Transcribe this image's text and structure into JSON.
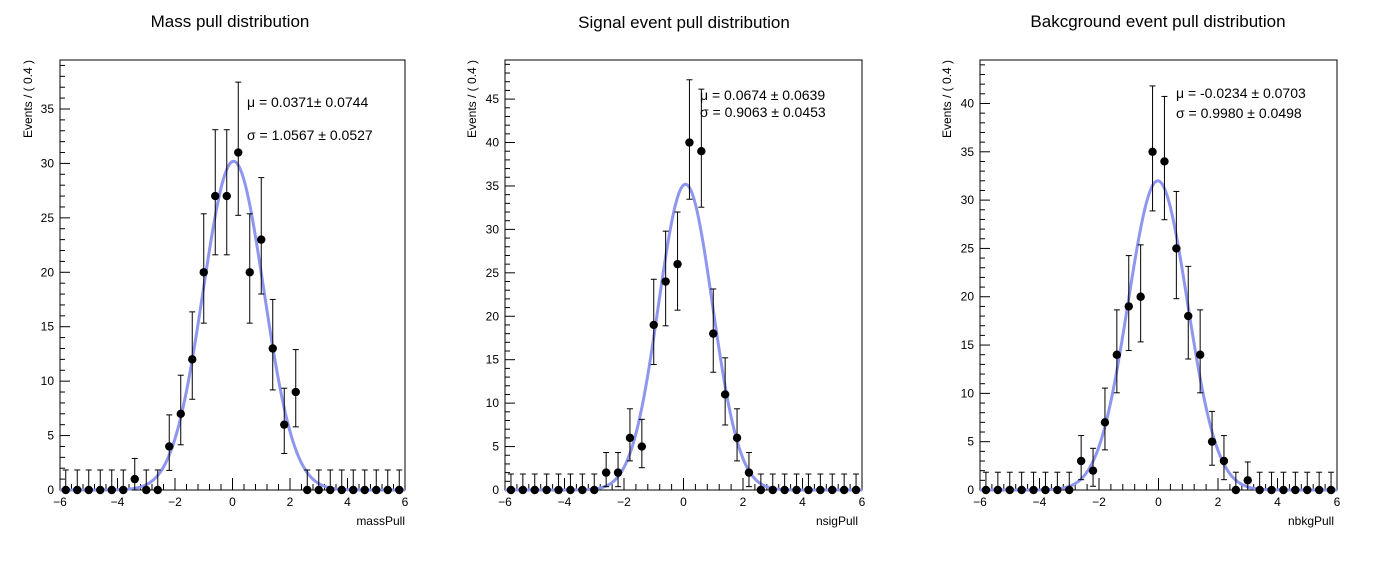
{
  "chart_data": [
    {
      "type": "scatter",
      "title": "Mass pull distribution",
      "xlabel": "massPull",
      "ylabel": "Events / ( 0.4 )",
      "xlim": [
        -6,
        6
      ],
      "ylim": [
        0,
        39.5
      ],
      "xticks": [
        -6,
        -4,
        -2,
        0,
        2,
        4,
        6
      ],
      "yticks": [
        0,
        5,
        10,
        15,
        20,
        25,
        30,
        35
      ],
      "bin_width": 0.4,
      "x": [
        -5.8,
        -5.4,
        -5.0,
        -4.6,
        -4.2,
        -3.8,
        -3.4,
        -3.0,
        -2.6,
        -2.2,
        -1.8,
        -1.4,
        -1.0,
        -0.6,
        -0.2,
        0.2,
        0.6,
        1.0,
        1.4,
        1.8,
        2.2,
        2.6,
        3.0,
        3.4,
        3.8,
        4.2,
        4.6,
        5.0,
        5.4,
        5.8
      ],
      "values": [
        0,
        0,
        0,
        0,
        0,
        0,
        1,
        0,
        0,
        4,
        7,
        12,
        20,
        27,
        27,
        31,
        20,
        23,
        13,
        6,
        9,
        0,
        0,
        0,
        0,
        0,
        0,
        0,
        0,
        0
      ],
      "fit": {
        "type": "gaussian",
        "mean": 0.0371,
        "sigma": 1.0567,
        "peak": 30.2
      },
      "annotations": [
        "μ = 0.0371± 0.0744",
        "σ = 1.0567 ± 0.0527"
      ],
      "legend": "none",
      "grid": false
    },
    {
      "type": "scatter",
      "title": "Signal event pull distribution",
      "xlabel": "nsigPull",
      "ylabel": "Events / ( 0.4 )",
      "xlim": [
        -6,
        6
      ],
      "ylim": [
        0,
        49.5
      ],
      "xticks": [
        -6,
        -4,
        -2,
        0,
        2,
        4,
        6
      ],
      "yticks": [
        0,
        5,
        10,
        15,
        20,
        25,
        30,
        35,
        40,
        45
      ],
      "bin_width": 0.4,
      "x": [
        -5.8,
        -5.4,
        -5.0,
        -4.6,
        -4.2,
        -3.8,
        -3.4,
        -3.0,
        -2.6,
        -2.2,
        -1.8,
        -1.4,
        -1.0,
        -0.6,
        -0.2,
        0.2,
        0.6,
        1.0,
        1.4,
        1.8,
        2.2,
        2.6,
        3.0,
        3.4,
        3.8,
        4.2,
        4.6,
        5.0,
        5.4,
        5.8
      ],
      "values": [
        0,
        0,
        0,
        0,
        0,
        0,
        0,
        0,
        2,
        2,
        6,
        5,
        19,
        24,
        26,
        40,
        39,
        18,
        11,
        6,
        2,
        0,
        0,
        0,
        0,
        0,
        0,
        0,
        0,
        0
      ],
      "fit": {
        "type": "gaussian",
        "mean": 0.0674,
        "sigma": 0.9063,
        "peak": 35.2
      },
      "annotations": [
        "μ = 0.0674  ± 0.0639",
        "σ = 0.9063  ± 0.0453"
      ],
      "legend": "none",
      "grid": false
    },
    {
      "type": "scatter",
      "title": "Bakcground event pull distribution",
      "xlabel": "nbkgPull",
      "ylabel": "Events / ( 0.4 )",
      "xlim": [
        -6,
        6
      ],
      "ylim": [
        0,
        44.5
      ],
      "xticks": [
        -6,
        -4,
        -2,
        0,
        2,
        4,
        6
      ],
      "yticks": [
        0,
        5,
        10,
        15,
        20,
        25,
        30,
        35,
        40
      ],
      "bin_width": 0.4,
      "x": [
        -5.8,
        -5.4,
        -5.0,
        -4.6,
        -4.2,
        -3.8,
        -3.4,
        -3.0,
        -2.6,
        -2.2,
        -1.8,
        -1.4,
        -1.0,
        -0.6,
        -0.2,
        0.2,
        0.6,
        1.0,
        1.4,
        1.8,
        2.2,
        2.6,
        3.0,
        3.4,
        3.8,
        4.2,
        4.6,
        5.0,
        5.4,
        5.8
      ],
      "values": [
        0,
        0,
        0,
        0,
        0,
        0,
        0,
        0,
        3,
        2,
        7,
        14,
        19,
        20,
        35,
        34,
        25,
        18,
        14,
        5,
        3,
        0,
        1,
        0,
        0,
        0,
        0,
        0,
        0,
        0
      ],
      "fit": {
        "type": "gaussian",
        "mean": -0.0234,
        "sigma": 0.998,
        "peak": 32.0
      },
      "annotations": [
        "μ = -0.0234  ± 0.0703",
        "σ = 0.9980  ± 0.0498"
      ],
      "legend": "none",
      "grid": false
    }
  ],
  "colors": {
    "fit_curve": "#8f96f0",
    "markers": "#000000",
    "frame": "#000000",
    "background": "#ffffff"
  }
}
